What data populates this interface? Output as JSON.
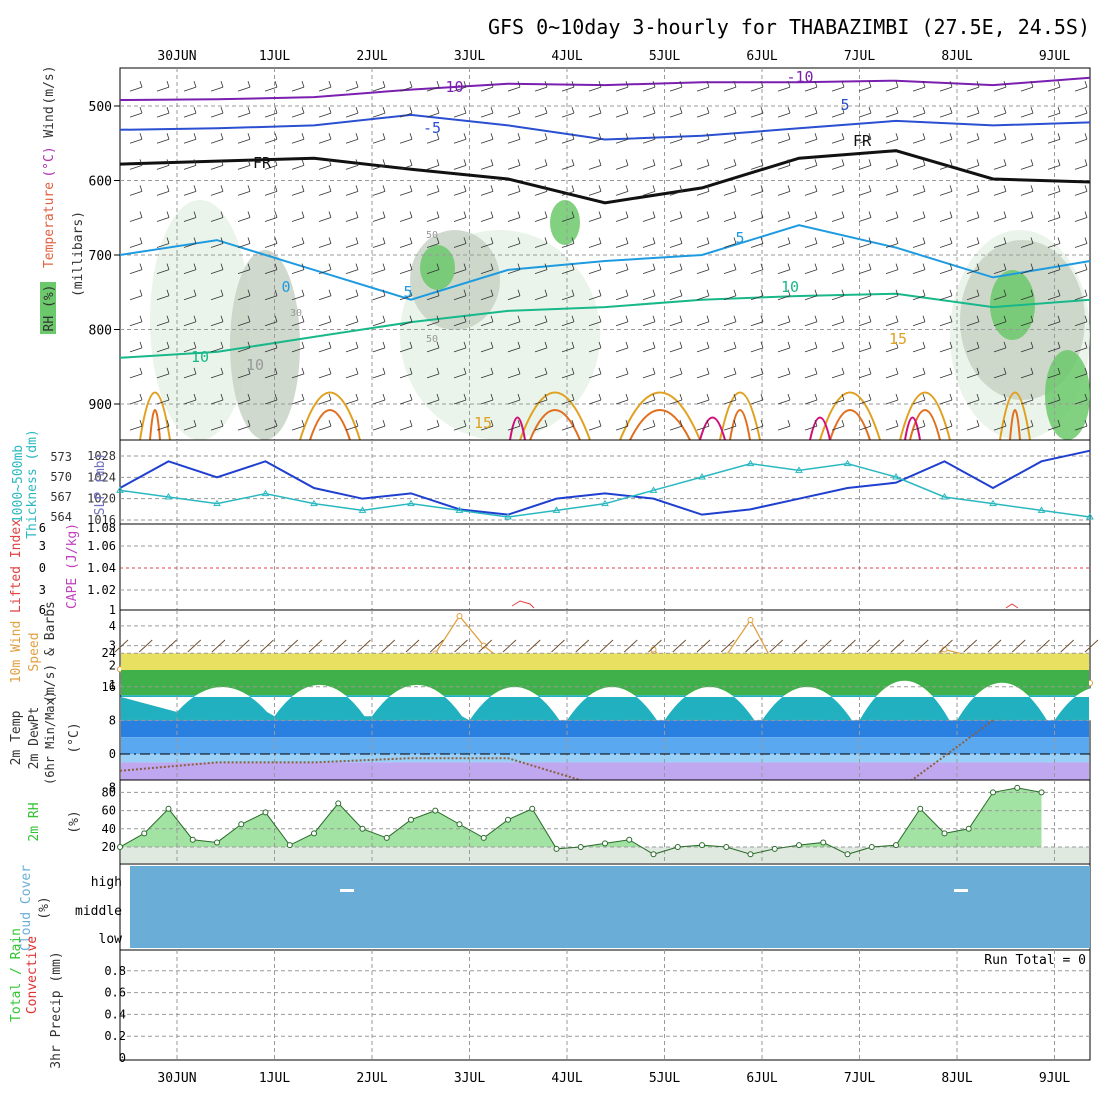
{
  "title": "GFS 0~10day 3-hourly for THABAZIMBI (27.5E, 24.5S)",
  "colors": {
    "grid": "#9a9a9a",
    "rh_light": "#e6f2e6",
    "rh_mid": "#c8d2c6",
    "rh_dark": "#6bc96b",
    "t_m10": "#7a1fb0",
    "t_m5": "#2a4fd0",
    "t_fr": "#111111",
    "t_5": "#1e9be0",
    "t_10": "#18b88a",
    "t_15": "#e0a020",
    "t_20": "#e07020",
    "t_25": "#d0107a",
    "slp": "#1f3fcf",
    "thk": "#2ab8c0",
    "li": "#e04040",
    "cape": "#c040c0",
    "wind": "#e0a040",
    "barb": "#6b4a2a",
    "rh2m": "#34c234",
    "cloud": "#6aaed8",
    "precip_total": "#32c832",
    "precip_conv": "#e03030"
  },
  "chart_data": [
    {
      "type": "line",
      "panel": "upper-air",
      "x_ticks": [
        "30JUN",
        "1JUL",
        "2JUL",
        "3JUL",
        "4JUL",
        "5JUL",
        "6JUL",
        "7JUL",
        "8JUL",
        "9JUL"
      ],
      "ylabel_parts": [
        "RH (%)",
        "Temperature",
        "(°C)",
        "Wind",
        "(m/s)"
      ],
      "ylabel_vertical": "(millibars)",
      "y_ticks": [
        500,
        600,
        700,
        800,
        900
      ],
      "ylim": [
        1000,
        450
      ],
      "contour_labels": [
        "-10",
        "-10",
        "-5",
        "5",
        "FR",
        "FR",
        "5",
        "5",
        "10",
        "10",
        "15",
        "15",
        "0",
        "30",
        "50",
        "50",
        "10"
      ],
      "isotherms": [
        {
          "name": "-10",
          "x": [
            0,
            1,
            2,
            3,
            4,
            5,
            6,
            7,
            8,
            9,
            10
          ],
          "y": [
            492,
            491,
            488,
            478,
            470,
            472,
            468,
            468,
            466,
            472,
            462
          ]
        },
        {
          "name": "-5",
          "x": [
            0,
            1,
            2,
            3,
            4,
            5,
            6,
            7,
            8,
            9,
            10
          ],
          "y": [
            532,
            530,
            526,
            512,
            526,
            545,
            540,
            530,
            520,
            526,
            522
          ]
        },
        {
          "name": "FR",
          "x": [
            0,
            1,
            2,
            3,
            4,
            5,
            6,
            7,
            8,
            9,
            10
          ],
          "y": [
            578,
            574,
            570,
            585,
            598,
            630,
            610,
            570,
            560,
            598,
            602
          ]
        },
        {
          "name": "5",
          "x": [
            0,
            1,
            2,
            3,
            4,
            5,
            6,
            7,
            8,
            9,
            10
          ],
          "y": [
            700,
            680,
            720,
            760,
            720,
            708,
            700,
            660,
            690,
            730,
            708
          ]
        },
        {
          "name": "10",
          "x": [
            0,
            1,
            2,
            3,
            4,
            5,
            6,
            7,
            8,
            9,
            10
          ],
          "y": [
            838,
            830,
            810,
            790,
            775,
            770,
            760,
            755,
            752,
            770,
            760
          ]
        }
      ]
    },
    {
      "type": "line",
      "panel": "slp-thickness",
      "ylabel_left": [
        "1000~500mb",
        "Thickness (dm)"
      ],
      "ylabel_right": "SLP (mb)",
      "y_ticks_left": [
        564,
        567,
        570,
        573
      ],
      "y_ticks_right": [
        1016,
        1020,
        1024,
        1028
      ],
      "series": [
        {
          "name": "SLP",
          "x": [
            0,
            0.5,
            1,
            1.5,
            2,
            2.5,
            3,
            3.5,
            4,
            4.5,
            5,
            5.5,
            6,
            6.5,
            7,
            7.5,
            8,
            8.5,
            9,
            9.5,
            10
          ],
          "y": [
            1022,
            1027,
            1024,
            1027,
            1022,
            1020,
            1021,
            1018,
            1017,
            1020,
            1021,
            1020,
            1017,
            1018,
            1020,
            1022,
            1023,
            1027,
            1022,
            1027,
            1029
          ]
        },
        {
          "name": "Thickness",
          "x": [
            0,
            0.5,
            1,
            1.5,
            2,
            2.5,
            3,
            3.5,
            4,
            4.5,
            5,
            5.5,
            6,
            6.5,
            7,
            7.5,
            8,
            8.5,
            9,
            9.5,
            10
          ],
          "y": [
            568,
            567,
            566,
            567.5,
            566,
            565,
            566,
            565,
            564,
            565,
            566,
            568,
            570,
            572,
            571,
            572,
            570,
            567,
            566,
            565,
            564
          ]
        }
      ]
    },
    {
      "type": "line",
      "panel": "li-cape",
      "ylabel_left": "Lifted Index",
      "ylabel_right": "CAPE (J/kg)",
      "y_ticks_left": [
        "6",
        "3",
        "0",
        "3",
        "6"
      ],
      "y_ticks_right": [
        "1",
        "1.02",
        "1.04",
        "1.06",
        "1.08"
      ]
    },
    {
      "type": "line",
      "panel": "10m-wind",
      "ylabel": [
        "10m Wind",
        "Speed",
        "(m/s) & Barbs"
      ],
      "y_ticks": [
        1,
        2,
        3,
        4
      ],
      "x": [
        0,
        0.25,
        0.5,
        0.75,
        1,
        1.25,
        1.5,
        1.75,
        2,
        2.25,
        2.5,
        2.75,
        3,
        3.25,
        3.5,
        3.75,
        4,
        4.25,
        4.5,
        4.75,
        5,
        5.25,
        5.5,
        5.75,
        6,
        6.25,
        6.5,
        6.75,
        7,
        7.25,
        7.5,
        7.75,
        8,
        8.25,
        8.5,
        8.75,
        9,
        9.25,
        9.5,
        9.75,
        10
      ],
      "values": [
        1.8,
        2,
        2.1,
        2.3,
        2,
        2.4,
        1.8,
        2,
        2,
        1,
        2,
        2.1,
        2.2,
        2.6,
        4.5,
        3,
        2,
        0.8,
        2.5,
        1.5,
        1,
        1,
        2.8,
        1.5,
        2,
        2.5,
        4.3,
        2,
        2.2,
        1.8,
        2.1,
        1.5,
        1.2,
        2,
        2.8,
        2.5,
        2.4,
        2.3,
        2.1,
        1.8,
        1.1
      ]
    },
    {
      "type": "area",
      "panel": "2m-temp",
      "ylabel": [
        "2m Temp",
        "2m DewPt",
        "(6hr Min/Max)"
      ],
      "ylabel_unit": "(°C)",
      "y_ticks": [
        "24",
        "16",
        "8",
        "0",
        "-8"
      ],
      "temp_max": [
        20,
        22,
        22,
        22,
        22,
        22,
        22,
        25,
        24,
        22
      ],
      "temp_min": [
        10,
        9,
        9,
        8,
        8,
        8,
        8,
        8,
        8,
        8
      ],
      "dewpoint": [
        -4,
        -2,
        -2,
        -1,
        -1,
        -8,
        -9,
        -7,
        -9,
        8
      ]
    },
    {
      "type": "area",
      "panel": "2m-rh",
      "ylabel": "2m RH",
      "ylabel_unit": "(%)",
      "y_ticks": [
        20,
        40,
        60,
        80
      ],
      "x": [
        0,
        0.25,
        0.5,
        0.75,
        1,
        1.25,
        1.5,
        1.75,
        2,
        2.25,
        2.5,
        2.75,
        3,
        3.25,
        3.5,
        3.75,
        4,
        4.25,
        4.5,
        4.75,
        5,
        5.25,
        5.5,
        5.75,
        6,
        6.25,
        6.5,
        6.75,
        7,
        7.25,
        7.5,
        7.75,
        8,
        8.25,
        8.5,
        8.75,
        9,
        9.25,
        9.5
      ],
      "values": [
        20,
        35,
        62,
        28,
        25,
        45,
        58,
        22,
        35,
        68,
        40,
        30,
        50,
        60,
        45,
        30,
        50,
        62,
        18,
        20,
        24,
        28,
        12,
        20,
        22,
        20,
        12,
        18,
        22,
        25,
        12,
        20,
        22,
        62,
        35,
        40,
        80,
        85,
        80
      ]
    },
    {
      "type": "area",
      "panel": "cloud-cover",
      "ylabel": "Cloud Cover",
      "ylabel_unit": "(%)",
      "y_ticks": [
        "high",
        "middle",
        "low"
      ]
    },
    {
      "type": "bar",
      "panel": "3hr-precip",
      "ylabel": "3hr Precip (mm)",
      "legend": [
        "Total / Rain",
        "Convective"
      ],
      "y_ticks": [
        "0",
        "0.2",
        "0.4",
        "0.6",
        "0.8"
      ],
      "run_total": "Run Total = 0",
      "values": []
    }
  ]
}
